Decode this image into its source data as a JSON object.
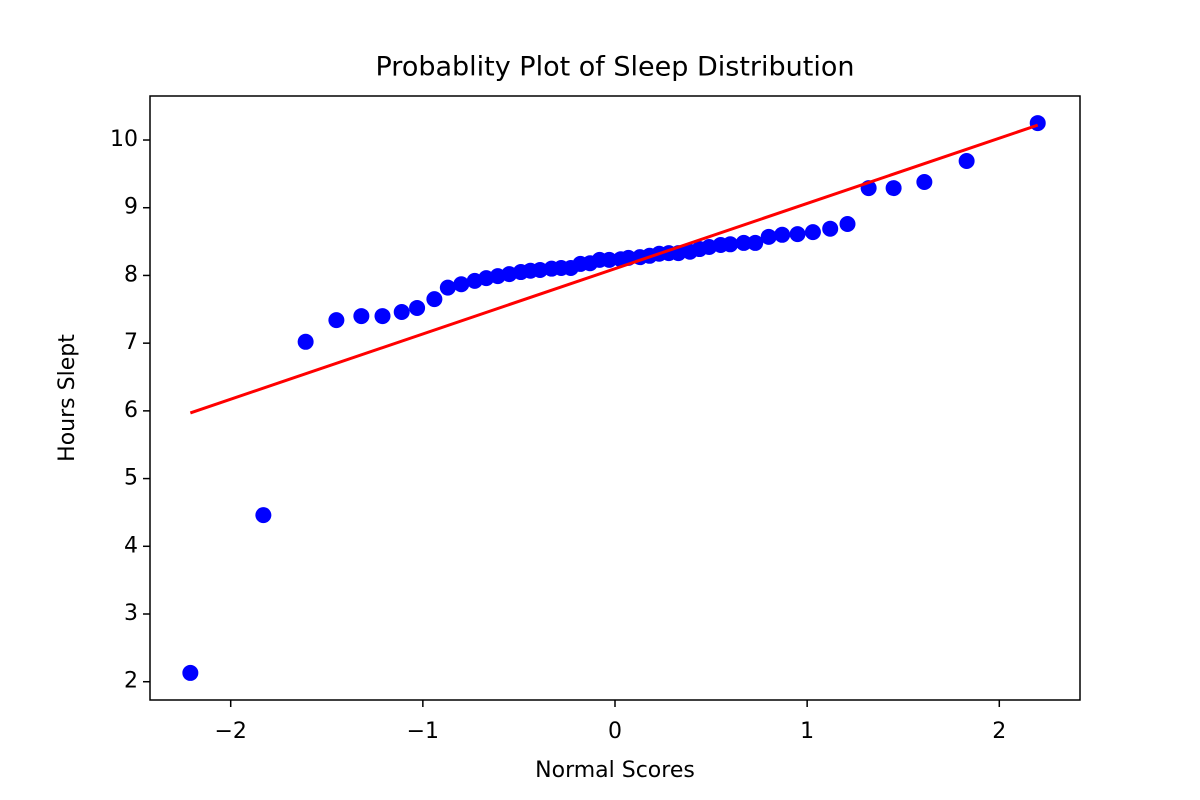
{
  "chart_data": {
    "type": "scatter",
    "title": "Probablity Plot of Sleep Distribution",
    "x_label": "Normal Scores",
    "y_label": "Hours Slept",
    "xlim": [
      -2.42,
      2.42
    ],
    "ylim": [
      1.73,
      10.65
    ],
    "xticks": [
      {
        "value": -2,
        "label": "−2"
      },
      {
        "value": -1,
        "label": "−1"
      },
      0,
      1,
      2
    ],
    "yticks": [
      2,
      3,
      4,
      5,
      6,
      7,
      8,
      9,
      10
    ],
    "grid": false,
    "series": [
      {
        "type": "scatter",
        "color": "#0000ff",
        "x": [
          -2.21,
          -1.83,
          -1.61,
          -1.45,
          -1.32,
          -1.21,
          -1.11,
          -1.03,
          -0.94,
          -0.87,
          -0.8,
          -0.73,
          -0.67,
          -0.61,
          -0.55,
          -0.49,
          -0.44,
          -0.39,
          -0.33,
          -0.28,
          -0.23,
          -0.18,
          -0.13,
          -0.08,
          -0.03,
          0.03,
          0.07,
          0.13,
          0.18,
          0.23,
          0.28,
          0.33,
          0.39,
          0.44,
          0.49,
          0.55,
          0.6,
          0.67,
          0.73,
          0.8,
          0.87,
          0.95,
          1.03,
          1.12,
          1.21,
          1.32,
          1.45,
          1.61,
          1.83,
          2.2
        ],
        "values": [
          2.13,
          4.46,
          7.02,
          7.34,
          7.4,
          7.4,
          7.46,
          7.52,
          7.65,
          7.82,
          7.87,
          7.92,
          7.96,
          7.99,
          8.02,
          8.05,
          8.07,
          8.08,
          8.1,
          8.11,
          8.11,
          8.17,
          8.18,
          8.23,
          8.23,
          8.24,
          8.26,
          8.27,
          8.29,
          8.32,
          8.33,
          8.33,
          8.35,
          8.39,
          8.42,
          8.45,
          8.46,
          8.48,
          8.48,
          8.57,
          8.6,
          8.61,
          8.64,
          8.69,
          8.76,
          9.29,
          9.29,
          9.38,
          9.69,
          10.25
        ]
      },
      {
        "type": "line",
        "color": "#ff0000",
        "x": [
          -2.21,
          2.2
        ],
        "values": [
          5.97,
          10.22
        ]
      }
    ]
  }
}
